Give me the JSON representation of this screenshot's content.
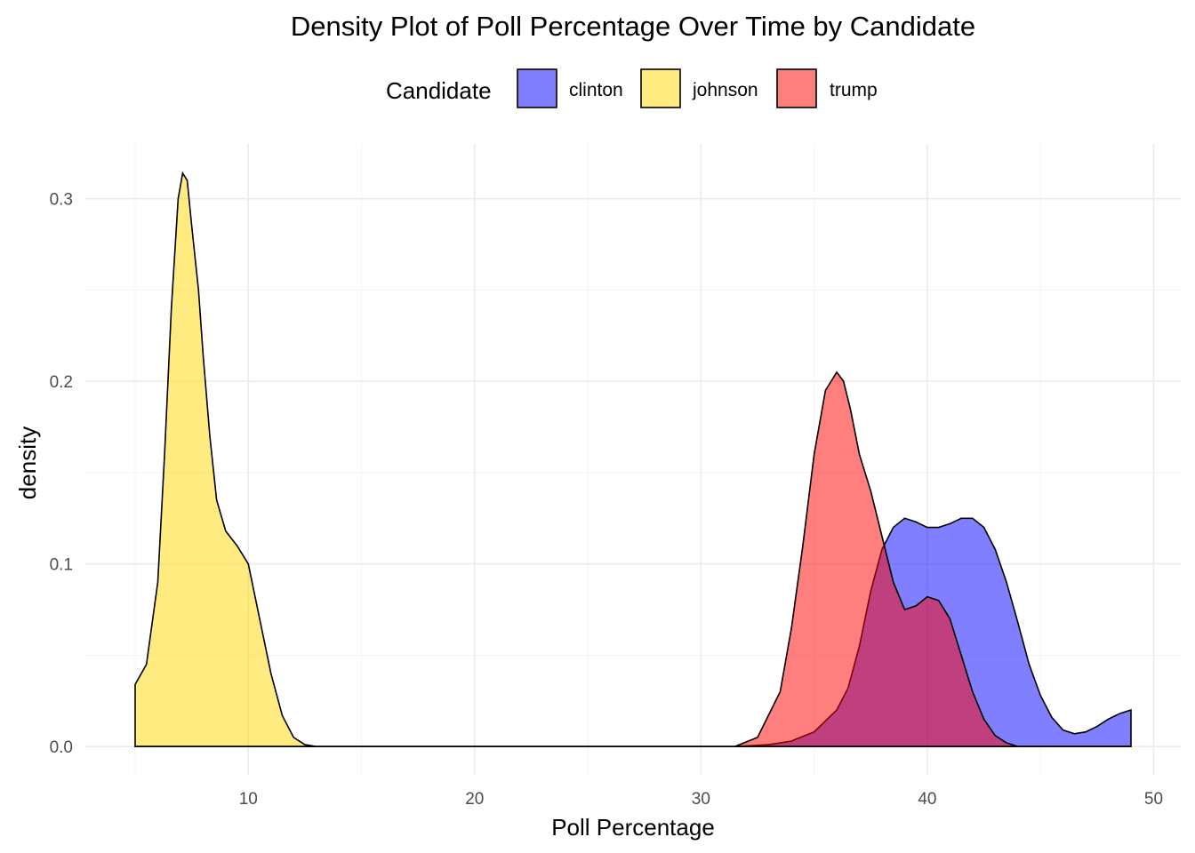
{
  "chart_data": {
    "type": "area",
    "title": "Density Plot of Poll Percentage Over Time by Candidate",
    "xlabel": "Poll Percentage",
    "ylabel": "density",
    "xlim": [
      2.8,
      51.2
    ],
    "ylim": [
      -0.0155,
      0.33
    ],
    "x_ticks": [
      10,
      20,
      30,
      40,
      50
    ],
    "y_ticks": [
      0.0,
      0.1,
      0.2,
      0.3
    ],
    "x_tick_labels": [
      "10",
      "20",
      "30",
      "40",
      "50"
    ],
    "y_tick_labels": [
      "0.0",
      "0.1",
      "0.2",
      "0.3"
    ],
    "grid": true,
    "legend": {
      "title": "Candidate",
      "position": "top"
    },
    "colors": {
      "clinton": "#0000ff",
      "johnson": "#ffd700",
      "trump": "#ff0000"
    },
    "series": [
      {
        "name": "clinton",
        "color": "#0000ff",
        "x": [
          5.0,
          31.5,
          33.0,
          34.0,
          35.0,
          36.0,
          36.5,
          37.0,
          37.5,
          38.0,
          38.5,
          39.0,
          39.5,
          40.0,
          40.5,
          41.0,
          41.5,
          42.0,
          42.5,
          43.0,
          43.5,
          44.0,
          44.5,
          45.0,
          45.5,
          46.0,
          46.5,
          47.0,
          47.5,
          48.0,
          48.5,
          49.0
        ],
        "values": [
          0.0,
          0.0,
          0.001,
          0.003,
          0.008,
          0.02,
          0.032,
          0.055,
          0.085,
          0.108,
          0.12,
          0.125,
          0.123,
          0.12,
          0.12,
          0.122,
          0.125,
          0.125,
          0.12,
          0.108,
          0.09,
          0.068,
          0.045,
          0.028,
          0.016,
          0.009,
          0.007,
          0.008,
          0.011,
          0.015,
          0.018,
          0.02
        ]
      },
      {
        "name": "johnson",
        "color": "#ffd700",
        "x": [
          5.0,
          5.5,
          6.0,
          6.3,
          6.6,
          6.9,
          7.1,
          7.3,
          7.5,
          7.8,
          8.0,
          8.3,
          8.6,
          9.0,
          9.5,
          10.0,
          10.5,
          11.0,
          11.5,
          12.0,
          12.5,
          13.0,
          49.0
        ],
        "values": [
          0.034,
          0.045,
          0.09,
          0.16,
          0.24,
          0.3,
          0.314,
          0.31,
          0.285,
          0.25,
          0.215,
          0.17,
          0.135,
          0.118,
          0.11,
          0.1,
          0.07,
          0.04,
          0.017,
          0.005,
          0.001,
          0.0,
          0.0
        ]
      },
      {
        "name": "trump",
        "color": "#ff0000",
        "x": [
          5.0,
          31.5,
          32.5,
          33.5,
          34.0,
          34.5,
          35.0,
          35.5,
          36.0,
          36.3,
          36.6,
          37.0,
          37.5,
          38.0,
          38.5,
          39.0,
          39.5,
          40.0,
          40.5,
          41.0,
          41.5,
          42.0,
          42.5,
          43.0,
          43.5,
          44.0,
          45.0,
          49.0
        ],
        "values": [
          0.0,
          0.0,
          0.005,
          0.03,
          0.065,
          0.11,
          0.16,
          0.195,
          0.205,
          0.2,
          0.185,
          0.16,
          0.14,
          0.115,
          0.09,
          0.075,
          0.077,
          0.082,
          0.08,
          0.07,
          0.05,
          0.03,
          0.015,
          0.006,
          0.002,
          0.0,
          0.0,
          0.0
        ]
      }
    ]
  }
}
